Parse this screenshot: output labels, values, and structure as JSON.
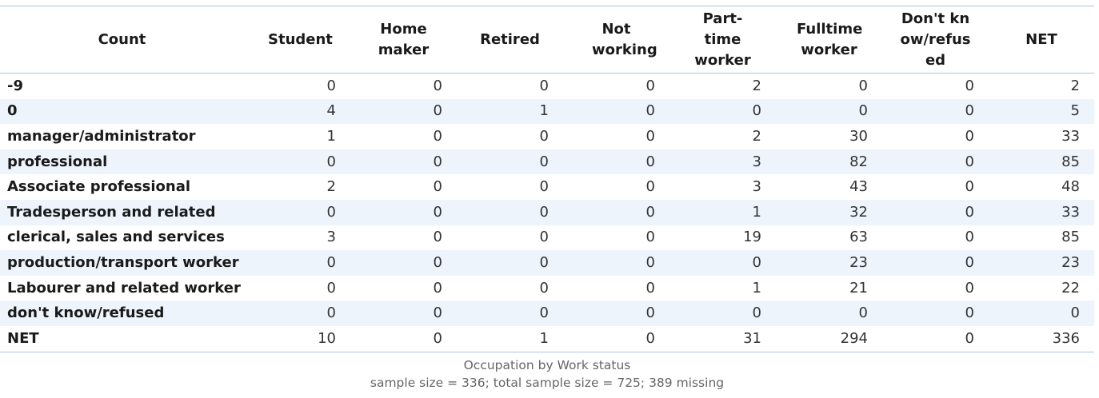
{
  "chart_data": {
    "type": "table",
    "title": "Occupation by Work status",
    "subtitle": "sample size = 336; total sample size = 725; 389 missing",
    "corner_label": "Count",
    "columns": [
      "Student",
      "Home maker",
      "Retired",
      "Not working",
      "Part-time worker",
      "Fulltime worker",
      "Don't know/refused",
      "NET"
    ],
    "rows": [
      {
        "label": "-9",
        "values": [
          "0",
          "0",
          "0",
          "0",
          "2",
          "0",
          "0",
          "2"
        ]
      },
      {
        "label": "0",
        "values": [
          "4",
          "0",
          "1",
          "0",
          "0",
          "0",
          "0",
          "5"
        ]
      },
      {
        "label": "manager/administrator",
        "values": [
          "1",
          "0",
          "0",
          "0",
          "2",
          "30",
          "0",
          "33"
        ]
      },
      {
        "label": "professional",
        "values": [
          "0",
          "0",
          "0",
          "0",
          "3",
          "82",
          "0",
          "85"
        ]
      },
      {
        "label": "Associate professional",
        "values": [
          "2",
          "0",
          "0",
          "0",
          "3",
          "43",
          "0",
          "48"
        ]
      },
      {
        "label": "Tradesperson and related",
        "values": [
          "0",
          "0",
          "0",
          "0",
          "1",
          "32",
          "0",
          "33"
        ]
      },
      {
        "label": "clerical, sales and services",
        "values": [
          "3",
          "0",
          "0",
          "0",
          "19",
          "63",
          "0",
          "85"
        ]
      },
      {
        "label": "production/transport worker",
        "values": [
          "0",
          "0",
          "0",
          "0",
          "0",
          "23",
          "0",
          "23"
        ]
      },
      {
        "label": "Labourer and related worker",
        "values": [
          "0",
          "0",
          "0",
          "0",
          "1",
          "21",
          "0",
          "22"
        ]
      },
      {
        "label": "don't know/refused",
        "values": [
          "0",
          "0",
          "0",
          "0",
          "0",
          "0",
          "0",
          "0"
        ]
      },
      {
        "label": "NET",
        "values": [
          "10",
          "0",
          "1",
          "0",
          "31",
          "294",
          "0",
          "336"
        ]
      }
    ]
  },
  "colors": {
    "border": "#a9c4e6",
    "stripe": "#eef4fc",
    "caption": "#666666"
  }
}
